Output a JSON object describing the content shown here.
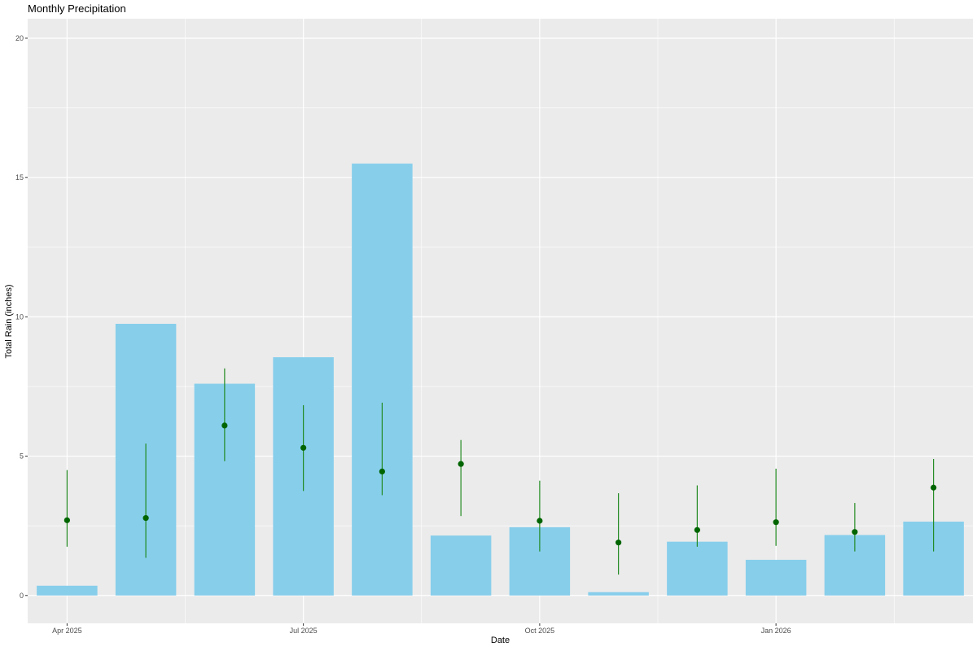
{
  "chart_data": {
    "type": "bar",
    "title": "Monthly Precipitation",
    "xlabel": "Date",
    "ylabel": "Total Rain (inches)",
    "ylim": [
      -1,
      20.7
    ],
    "y_ticks": [
      0,
      5,
      10,
      15,
      20
    ],
    "x_tick_labels": [
      "Apr 2025",
      "Jul 2025",
      "Oct 2025",
      "Jan 2026"
    ],
    "categories": [
      "2025-04",
      "2025-05",
      "2025-06",
      "2025-07",
      "2025-08",
      "2025-09",
      "2025-10",
      "2025-11",
      "2025-12",
      "2026-01",
      "2026-02",
      "2026-03"
    ],
    "values": [
      0.35,
      9.75,
      7.6,
      8.55,
      15.5,
      2.15,
      2.45,
      0.12,
      1.93,
      1.28,
      2.17,
      2.65
    ],
    "points": {
      "mean": [
        2.7,
        2.78,
        6.1,
        5.3,
        4.45,
        4.72,
        2.68,
        1.9,
        2.35,
        2.63,
        2.28,
        3.87
      ],
      "low": [
        1.75,
        1.35,
        4.82,
        3.75,
        3.6,
        2.85,
        1.58,
        0.75,
        1.75,
        1.78,
        1.58,
        1.58
      ],
      "high": [
        4.5,
        5.45,
        8.15,
        6.83,
        6.92,
        5.58,
        4.12,
        3.67,
        3.95,
        4.55,
        3.32,
        4.9
      ]
    },
    "grid": true,
    "colors": {
      "bar": "#87ceeb",
      "point": "#006400",
      "errorbar": "#228b22",
      "panel": "#ebebeb",
      "gridline": "#ffffff"
    }
  }
}
